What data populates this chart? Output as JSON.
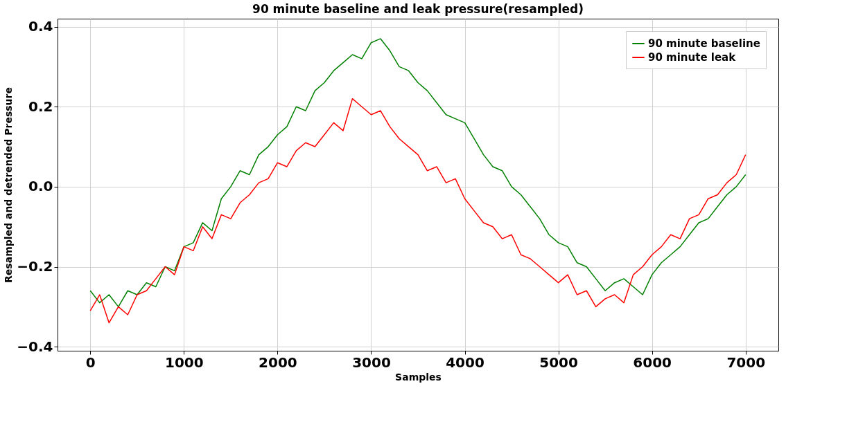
{
  "chart_data": {
    "type": "line",
    "title": "90 minute baseline and leak pressure(resampled)",
    "xlabel": "Samples",
    "ylabel": "Resampled and detrended Pressure",
    "x": [
      0,
      100,
      200,
      300,
      400,
      500,
      600,
      700,
      800,
      900,
      1000,
      1100,
      1200,
      1300,
      1400,
      1500,
      1600,
      1700,
      1800,
      1900,
      2000,
      2100,
      2200,
      2300,
      2400,
      2500,
      2600,
      2700,
      2800,
      2900,
      3000,
      3100,
      3200,
      3300,
      3400,
      3500,
      3600,
      3700,
      3800,
      3900,
      4000,
      4100,
      4200,
      4300,
      4400,
      4500,
      4600,
      4700,
      4800,
      4900,
      5000,
      5100,
      5200,
      5300,
      5400,
      5500,
      5600,
      5700,
      5800,
      5900,
      6000,
      6100,
      6200,
      6300,
      6400,
      6500,
      6600,
      6700,
      6800,
      6900,
      7000
    ],
    "series": [
      {
        "name": "90 minute baseline",
        "color": "#008000",
        "values": [
          -0.26,
          -0.29,
          -0.27,
          -0.3,
          -0.26,
          -0.27,
          -0.24,
          -0.25,
          -0.2,
          -0.21,
          -0.15,
          -0.14,
          -0.09,
          -0.11,
          -0.03,
          0.0,
          0.04,
          0.03,
          0.08,
          0.1,
          0.13,
          0.15,
          0.2,
          0.19,
          0.24,
          0.26,
          0.29,
          0.31,
          0.33,
          0.32,
          0.36,
          0.37,
          0.34,
          0.3,
          0.29,
          0.26,
          0.24,
          0.21,
          0.18,
          0.17,
          0.16,
          0.12,
          0.08,
          0.05,
          0.04,
          0.0,
          -0.02,
          -0.05,
          -0.08,
          -0.12,
          -0.14,
          -0.15,
          -0.19,
          -0.2,
          -0.23,
          -0.26,
          -0.24,
          -0.23,
          -0.25,
          -0.27,
          -0.22,
          -0.19,
          -0.17,
          -0.15,
          -0.12,
          -0.09,
          -0.08,
          -0.05,
          -0.02,
          0.0,
          0.03
        ]
      },
      {
        "name": "90 minute leak",
        "color": "#ff0000",
        "values": [
          -0.31,
          -0.27,
          -0.34,
          -0.3,
          -0.32,
          -0.27,
          -0.26,
          -0.23,
          -0.2,
          -0.22,
          -0.15,
          -0.16,
          -0.1,
          -0.13,
          -0.07,
          -0.08,
          -0.04,
          -0.02,
          0.01,
          0.02,
          0.06,
          0.05,
          0.09,
          0.11,
          0.1,
          0.13,
          0.16,
          0.14,
          0.22,
          0.2,
          0.18,
          0.19,
          0.15,
          0.12,
          0.1,
          0.08,
          0.04,
          0.05,
          0.01,
          0.02,
          -0.03,
          -0.06,
          -0.09,
          -0.1,
          -0.13,
          -0.12,
          -0.17,
          -0.18,
          -0.2,
          -0.22,
          -0.24,
          -0.22,
          -0.27,
          -0.26,
          -0.3,
          -0.28,
          -0.27,
          -0.29,
          -0.22,
          -0.2,
          -0.17,
          -0.15,
          -0.12,
          -0.13,
          -0.08,
          -0.07,
          -0.03,
          -0.02,
          0.01,
          0.03,
          0.08
        ]
      }
    ],
    "xlim": [
      -350,
      7350
    ],
    "xticks": [
      0,
      1000,
      2000,
      3000,
      4000,
      5000,
      6000,
      7000
    ],
    "ylim": [
      -0.41,
      0.42
    ],
    "yticks": [
      {
        "value": -0.4,
        "label": "−0.4"
      },
      {
        "value": -0.2,
        "label": "−0.2"
      },
      {
        "value": 0,
        "label": "0.0"
      },
      {
        "value": 0.2,
        "label": "0.2"
      },
      {
        "value": 0.4,
        "label": "0.4"
      }
    ],
    "grid": true,
    "legend": "top right",
    "line_style": "solid",
    "marker": "none"
  }
}
